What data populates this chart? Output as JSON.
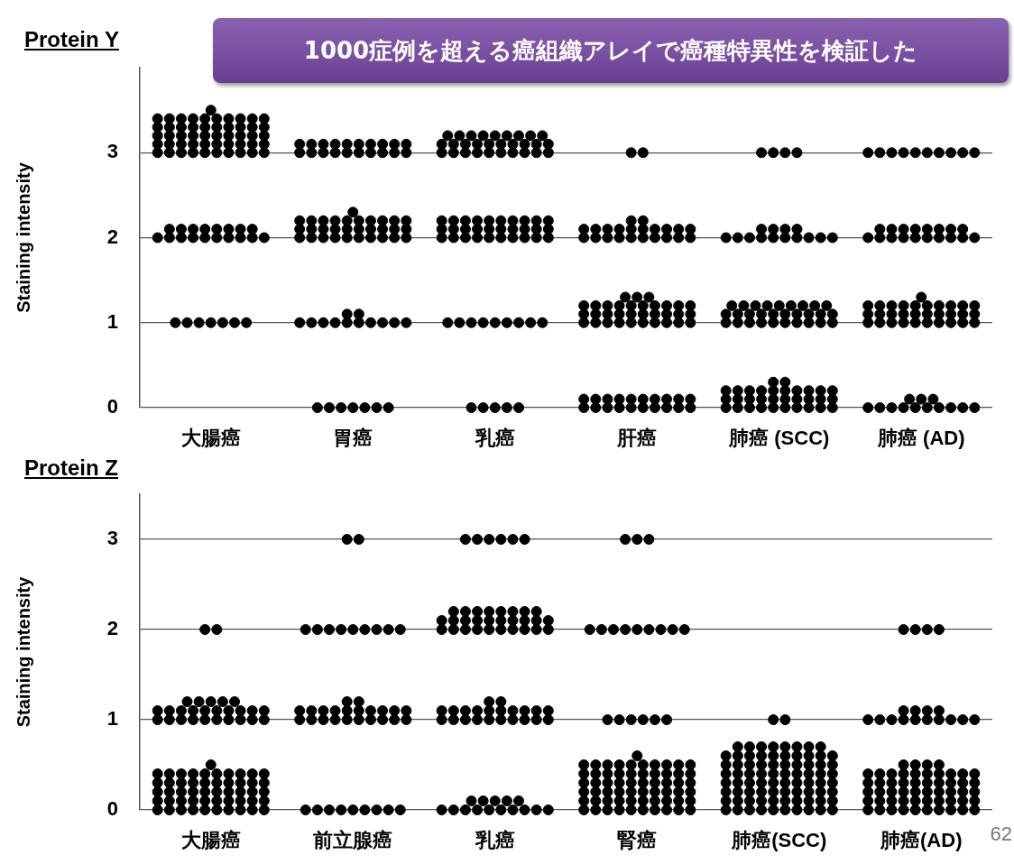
{
  "chart_data": [
    {
      "type": "scatter",
      "title": "Protein Y",
      "ylabel": "Staining intensity",
      "annotations": [
        "1000症例を超える癌組織アレイで癌種特異性を検証した"
      ],
      "categories": [
        "大腸癌",
        "胃癌",
        "乳癌",
        "肝癌",
        "肺癌 (SCC)",
        "肺癌 (AD)"
      ],
      "ylim": [
        0,
        4
      ],
      "yticks": [
        0,
        1,
        2,
        3
      ],
      "grid": "y",
      "legend": false,
      "marker": "circle",
      "series": [
        {
          "color": "#000000",
          "x": [
            "大腸癌",
            "大腸癌",
            "大腸癌",
            "大腸癌",
            "大腸癌",
            "大腸癌",
            "大腸癌",
            "大腸癌",
            "大腸癌",
            "大腸癌",
            "大腸癌",
            "大腸癌",
            "大腸癌",
            "大腸癌",
            "大腸癌",
            "大腸癌",
            "大腸癌",
            "大腸癌",
            "大腸癌",
            "大腸癌",
            "大腸癌",
            "大腸癌",
            "大腸癌",
            "大腸癌",
            "大腸癌",
            "大腸癌",
            "大腸癌",
            "大腸癌",
            "大腸癌",
            "大腸癌",
            "大腸癌",
            "大腸癌",
            "大腸癌",
            "大腸癌",
            "大腸癌",
            "大腸癌",
            "大腸癌",
            "大腸癌",
            "大腸癌",
            "大腸癌",
            "大腸癌",
            "大腸癌",
            "大腸癌",
            "大腸癌",
            "大腸癌",
            "大腸癌",
            "大腸癌",
            "大腸癌",
            "大腸癌",
            "大腸癌",
            "大腸癌",
            "大腸癌",
            "大腸癌",
            "大腸癌",
            "大腸癌",
            "大腸癌",
            "大腸癌",
            "大腸癌",
            "大腸癌",
            "大腸癌",
            "大腸癌",
            "大腸癌",
            "大腸癌",
            "大腸癌",
            "大腸癌",
            "大腸癌",
            "大腸癌",
            "大腸癌",
            "大腸癌",
            "大腸癌",
            "大腸癌",
            "大腸癌",
            "大腸癌",
            "大腸癌",
            "大腸癌",
            "大腸癌"
          ],
          "values": [
            3,
            3,
            3,
            3,
            3,
            3,
            3,
            3,
            3,
            3,
            3.1,
            3.1,
            3.1,
            3.1,
            3.1,
            3.1,
            3.1,
            3.1,
            3.1,
            3.1,
            3.2,
            3.2,
            3.2,
            3.2,
            3.2,
            3.2,
            3.2,
            3.2,
            3.2,
            3.2,
            3.3,
            3.3,
            3.3,
            3.3,
            3.3,
            3.3,
            3.3,
            3.3,
            3.3,
            3.3,
            3.4,
            3.4,
            3.4,
            3.4,
            3.4,
            3.4,
            3.4,
            3.4,
            3.4,
            3.4,
            3.5,
            2,
            2,
            2,
            2,
            2,
            2,
            2,
            2,
            2,
            2,
            2.1,
            2.1,
            2.1,
            2.1,
            2.1,
            2.1,
            2.1,
            2.1,
            1,
            1,
            1,
            1,
            1,
            1,
            1
          ]
        },
        {
          "color": "#000000",
          "x": [
            "胃癌",
            "胃癌",
            "胃癌",
            "胃癌",
            "胃癌",
            "胃癌",
            "胃癌",
            "胃癌",
            "胃癌",
            "胃癌",
            "胃癌",
            "胃癌",
            "胃癌",
            "胃癌",
            "胃癌",
            "胃癌",
            "胃癌",
            "胃癌",
            "胃癌",
            "胃癌",
            "胃癌",
            "胃癌",
            "胃癌",
            "胃癌",
            "胃癌",
            "胃癌",
            "胃癌",
            "胃癌",
            "胃癌",
            "胃癌",
            "胃癌",
            "胃癌",
            "胃癌",
            "胃癌",
            "胃癌",
            "胃癌",
            "胃癌",
            "胃癌",
            "胃癌",
            "胃癌",
            "胃癌",
            "胃癌",
            "胃癌",
            "胃癌",
            "胃癌",
            "胃癌",
            "胃癌",
            "胃癌",
            "胃癌",
            "胃癌",
            "胃癌",
            "胃癌",
            "胃癌",
            "胃癌",
            "胃癌",
            "胃癌",
            "胃癌",
            "胃癌",
            "胃癌",
            "胃癌",
            "胃癌",
            "胃癌",
            "胃癌",
            "胃癌",
            "胃癌",
            "胃癌",
            "胃癌",
            "胃癌",
            "胃癌",
            "胃癌"
          ],
          "values": [
            3,
            3,
            3,
            3,
            3,
            3,
            3,
            3,
            3,
            3,
            3.1,
            3.1,
            3.1,
            3.1,
            3.1,
            3.1,
            3.1,
            3.1,
            3.1,
            3.1,
            2,
            2,
            2,
            2,
            2,
            2,
            2,
            2,
            2,
            2,
            2.1,
            2.1,
            2.1,
            2.1,
            2.1,
            2.1,
            2.1,
            2.1,
            2.1,
            2.1,
            2.2,
            2.2,
            2.2,
            2.2,
            2.2,
            2.2,
            2.2,
            2.2,
            2.2,
            2.2,
            2.3,
            1,
            1,
            1,
            1,
            1,
            1,
            1,
            1,
            1,
            1,
            1.1,
            1.1,
            0,
            0,
            0,
            0,
            0,
            0,
            0
          ]
        },
        {
          "color": "#000000",
          "x": [
            "乳癌",
            "乳癌",
            "乳癌",
            "乳癌",
            "乳癌",
            "乳癌",
            "乳癌",
            "乳癌",
            "乳癌",
            "乳癌",
            "乳癌",
            "乳癌",
            "乳癌",
            "乳癌",
            "乳癌",
            "乳癌",
            "乳癌",
            "乳癌",
            "乳癌",
            "乳癌",
            "乳癌",
            "乳癌",
            "乳癌",
            "乳癌",
            "乳癌",
            "乳癌",
            "乳癌",
            "乳癌",
            "乳癌",
            "乳癌",
            "乳癌",
            "乳癌",
            "乳癌",
            "乳癌",
            "乳癌",
            "乳癌",
            "乳癌",
            "乳癌",
            "乳癌",
            "乳癌",
            "乳癌",
            "乳癌",
            "乳癌",
            "乳癌",
            "乳癌",
            "乳癌",
            "乳癌",
            "乳癌",
            "乳癌",
            "乳癌",
            "乳癌",
            "乳癌",
            "乳癌",
            "乳癌",
            "乳癌",
            "乳癌",
            "乳癌",
            "乳癌",
            "乳癌",
            "乳癌",
            "乳癌",
            "乳癌",
            "乳癌",
            "乳癌",
            "乳癌",
            "乳癌",
            "乳癌",
            "乳癌",
            "乳癌",
            "乳癌",
            "乳癌",
            "乳癌",
            "乳癌"
          ],
          "values": [
            3,
            3,
            3,
            3,
            3,
            3,
            3,
            3,
            3,
            3,
            3.1,
            3.1,
            3.1,
            3.1,
            3.1,
            3.1,
            3.1,
            3.1,
            3.1,
            3.1,
            3.2,
            3.2,
            3.2,
            3.2,
            3.2,
            3.2,
            3.2,
            3.2,
            3.2,
            2,
            2,
            2,
            2,
            2,
            2,
            2,
            2,
            2,
            2,
            2.1,
            2.1,
            2.1,
            2.1,
            2.1,
            2.1,
            2.1,
            2.1,
            2.1,
            2.1,
            2.2,
            2.2,
            2.2,
            2.2,
            2.2,
            2.2,
            2.2,
            2.2,
            2.2,
            2.2,
            1,
            1,
            1,
            1,
            1,
            1,
            1,
            1,
            1,
            0,
            0,
            0,
            0,
            0
          ]
        },
        {
          "color": "#000000",
          "x": [
            "肝癌",
            "肝癌",
            "肝癌",
            "肝癌",
            "肝癌",
            "肝癌",
            "肝癌",
            "肝癌",
            "肝癌",
            "肝癌",
            "肝癌",
            "肝癌",
            "肝癌",
            "肝癌",
            "肝癌",
            "肝癌",
            "肝癌",
            "肝癌",
            "肝癌",
            "肝癌",
            "肝癌",
            "肝癌",
            "肝癌",
            "肝癌",
            "肝癌",
            "肝癌",
            "肝癌",
            "肝癌",
            "肝癌",
            "肝癌",
            "肝癌",
            "肝癌",
            "肝癌",
            "肝癌",
            "肝癌",
            "肝癌",
            "肝癌",
            "肝癌",
            "肝癌",
            "肝癌",
            "肝癌",
            "肝癌",
            "肝癌",
            "肝癌",
            "肝癌",
            "肝癌",
            "肝癌",
            "肝癌",
            "肝癌",
            "肝癌",
            "肝癌",
            "肝癌",
            "肝癌",
            "肝癌",
            "肝癌",
            "肝癌",
            "肝癌",
            "肝癌",
            "肝癌",
            "肝癌",
            "肝癌",
            "肝癌",
            "肝癌",
            "肝癌",
            "肝癌",
            "肝癌",
            "肝癌",
            "肝癌",
            "肝癌",
            "肝癌",
            "肝癌",
            "肝癌",
            "肝癌",
            "肝癌",
            "肝癌",
            "肝癌",
            "肝癌"
          ],
          "values": [
            3,
            3,
            2,
            2,
            2,
            2,
            2,
            2,
            2,
            2,
            2,
            2,
            2.1,
            2.1,
            2.1,
            2.1,
            2.1,
            2.1,
            2.1,
            2.1,
            2.1,
            2.1,
            2.2,
            2.2,
            1,
            1,
            1,
            1,
            1,
            1,
            1,
            1,
            1,
            1,
            1.1,
            1.1,
            1.1,
            1.1,
            1.1,
            1.1,
            1.1,
            1.1,
            1.1,
            1.1,
            1.2,
            1.2,
            1.2,
            1.2,
            1.2,
            1.2,
            1.2,
            1.2,
            1.2,
            1.2,
            1.3,
            1.3,
            1.3,
            0,
            0,
            0,
            0,
            0,
            0,
            0,
            0,
            0,
            0,
            0.1,
            0.1,
            0.1,
            0.1,
            0.1,
            0.1,
            0.1,
            0.1,
            0.1,
            0.1
          ]
        },
        {
          "color": "#000000",
          "x": [
            "肺癌 (SCC)",
            "肺癌 (SCC)",
            "肺癌 (SCC)",
            "肺癌 (SCC)",
            "肺癌 (SCC)",
            "肺癌 (SCC)",
            "肺癌 (SCC)",
            "肺癌 (SCC)",
            "肺癌 (SCC)",
            "肺癌 (SCC)",
            "肺癌 (SCC)",
            "肺癌 (SCC)",
            "肺癌 (SCC)",
            "肺癌 (SCC)",
            "肺癌 (SCC)",
            "肺癌 (SCC)",
            "肺癌 (SCC)",
            "肺癌 (SCC)",
            "肺癌 (SCC)",
            "肺癌 (SCC)",
            "肺癌 (SCC)",
            "肺癌 (SCC)",
            "肺癌 (SCC)",
            "肺癌 (SCC)",
            "肺癌 (SCC)",
            "肺癌 (SCC)",
            "肺癌 (SCC)",
            "肺癌 (SCC)",
            "肺癌 (SCC)",
            "肺癌 (SCC)",
            "肺癌 (SCC)",
            "肺癌 (SCC)",
            "肺癌 (SCC)",
            "肺癌 (SCC)",
            "肺癌 (SCC)",
            "肺癌 (SCC)",
            "肺癌 (SCC)",
            "肺癌 (SCC)",
            "肺癌 (SCC)",
            "肺癌 (SCC)",
            "肺癌 (SCC)",
            "肺癌 (SCC)",
            "肺癌 (SCC)",
            "肺癌 (SCC)",
            "肺癌 (SCC)",
            "肺癌 (SCC)",
            "肺癌 (SCC)",
            "肺癌 (SCC)",
            "肺癌 (SCC)",
            "肺癌 (SCC)",
            "肺癌 (SCC)",
            "肺癌 (SCC)",
            "肺癌 (SCC)",
            "肺癌 (SCC)",
            "肺癌 (SCC)",
            "肺癌 (SCC)",
            "肺癌 (SCC)",
            "肺癌 (SCC)",
            "肺癌 (SCC)",
            "肺癌 (SCC)",
            "肺癌 (SCC)",
            "肺癌 (SCC)",
            "肺癌 (SCC)",
            "肺癌 (SCC)",
            "肺癌 (SCC)",
            "肺癌 (SCC)",
            "肺癌 (SCC)",
            "肺癌 (SCC)",
            "肺癌 (SCC)",
            "肺癌 (SCC)",
            "肺癌 (SCC)",
            "肺癌 (SCC)",
            "肺癌 (SCC)",
            "肺癌 (SCC)",
            "肺癌 (SCC)",
            "肺癌 (SCC)",
            "肺癌 (SCC)",
            "肺癌 (SCC)",
            "肺癌 (SCC)"
          ],
          "values": [
            3,
            3,
            3,
            3,
            2,
            2,
            2,
            2,
            2,
            2,
            2,
            2,
            2,
            2,
            2.1,
            2.1,
            2.1,
            2.1,
            1,
            1,
            1,
            1,
            1,
            1,
            1,
            1,
            1,
            1,
            1.1,
            1.1,
            1.1,
            1.1,
            1.1,
            1.1,
            1.1,
            1.1,
            1.1,
            1.1,
            1.2,
            1.2,
            1.2,
            1.2,
            1.2,
            1.2,
            1.2,
            1.2,
            1.2,
            0,
            0,
            0,
            0,
            0,
            0,
            0,
            0,
            0,
            0,
            0.1,
            0.1,
            0.1,
            0.1,
            0.1,
            0.1,
            0.1,
            0.1,
            0.1,
            0.1,
            0.2,
            0.2,
            0.2,
            0.2,
            0.2,
            0.2,
            0.2,
            0.2,
            0.2,
            0.2,
            0.3,
            0.3
          ]
        },
        {
          "color": "#000000",
          "x": [
            "肺癌 (AD)",
            "肺癌 (AD)",
            "肺癌 (AD)",
            "肺癌 (AD)",
            "肺癌 (AD)",
            "肺癌 (AD)",
            "肺癌 (AD)",
            "肺癌 (AD)",
            "肺癌 (AD)",
            "肺癌 (AD)",
            "肺癌 (AD)",
            "肺癌 (AD)",
            "肺癌 (AD)",
            "肺癌 (AD)",
            "肺癌 (AD)",
            "肺癌 (AD)",
            "肺癌 (AD)",
            "肺癌 (AD)",
            "肺癌 (AD)",
            "肺癌 (AD)",
            "肺癌 (AD)",
            "肺癌 (AD)",
            "肺癌 (AD)",
            "肺癌 (AD)",
            "肺癌 (AD)",
            "肺癌 (AD)",
            "肺癌 (AD)",
            "肺癌 (AD)",
            "肺癌 (AD)",
            "肺癌 (AD)",
            "肺癌 (AD)",
            "肺癌 (AD)",
            "肺癌 (AD)",
            "肺癌 (AD)",
            "肺癌 (AD)",
            "肺癌 (AD)",
            "肺癌 (AD)",
            "肺癌 (AD)",
            "肺癌 (AD)",
            "肺癌 (AD)",
            "肺癌 (AD)",
            "肺癌 (AD)",
            "肺癌 (AD)",
            "肺癌 (AD)",
            "肺癌 (AD)",
            "肺癌 (AD)",
            "肺癌 (AD)",
            "肺癌 (AD)",
            "肺癌 (AD)",
            "肺癌 (AD)",
            "肺癌 (AD)",
            "肺癌 (AD)",
            "肺癌 (AD)",
            "肺癌 (AD)",
            "肺癌 (AD)",
            "肺癌 (AD)",
            "肺癌 (AD)",
            "肺癌 (AD)",
            "肺癌 (AD)",
            "肺癌 (AD)",
            "肺癌 (AD)",
            "肺癌 (AD)",
            "肺癌 (AD)",
            "肺癌 (AD)",
            "肺癌 (AD)",
            "肺癌 (AD)",
            "肺癌 (AD)",
            "肺癌 (AD)",
            "肺癌 (AD)",
            "肺癌 (AD)",
            "肺癌 (AD)",
            "肺癌 (AD)"
          ],
          "values": [
            3,
            3,
            3,
            3,
            3,
            3,
            3,
            3,
            3,
            3,
            2,
            2,
            2,
            2,
            2,
            2,
            2,
            2,
            2,
            2,
            2.1,
            2.1,
            2.1,
            2.1,
            2.1,
            2.1,
            2.1,
            2.1,
            1,
            1,
            1,
            1,
            1,
            1,
            1,
            1,
            1,
            1,
            1.1,
            1.1,
            1.1,
            1.1,
            1.1,
            1.1,
            1.1,
            1.1,
            1.1,
            1.1,
            1.2,
            1.2,
            1.2,
            1.2,
            1.2,
            1.2,
            1.2,
            1.2,
            1.2,
            1.2,
            1.3,
            0,
            0,
            0,
            0,
            0,
            0,
            0,
            0,
            0,
            0,
            0.1,
            0.1,
            0.1
          ]
        }
      ]
    },
    {
      "type": "scatter",
      "title": "Protein Z",
      "ylabel": "Staining intensity",
      "annotations": [
        "62"
      ],
      "categories": [
        "大腸癌",
        "前立腺癌",
        "乳癌",
        "腎癌",
        "肺癌(SCC)",
        "肺癌(AD)"
      ],
      "ylim": [
        0,
        3.5
      ],
      "yticks": [
        0,
        1,
        2,
        3
      ],
      "grid": "y",
      "legend": false,
      "marker": "circle",
      "series": [
        {
          "color": "#000000",
          "x": [
            "大腸癌",
            "大腸癌",
            "大腸癌",
            "大腸癌",
            "大腸癌",
            "大腸癌",
            "大腸癌",
            "大腸癌",
            "大腸癌",
            "大腸癌",
            "大腸癌",
            "大腸癌",
            "大腸癌",
            "大腸癌",
            "大腸癌",
            "大腸癌",
            "大腸癌",
            "大腸癌",
            "大腸癌",
            "大腸癌",
            "大腸癌",
            "大腸癌",
            "大腸癌",
            "大腸癌",
            "大腸癌",
            "大腸癌",
            "大腸癌",
            "大腸癌",
            "大腸癌",
            "大腸癌",
            "大腸癌",
            "大腸癌",
            "大腸癌",
            "大腸癌",
            "大腸癌",
            "大腸癌",
            "大腸癌",
            "大腸癌",
            "大腸癌",
            "大腸癌",
            "大腸癌",
            "大腸癌",
            "大腸癌",
            "大腸癌",
            "大腸癌",
            "大腸癌",
            "大腸癌",
            "大腸癌",
            "大腸癌",
            "大腸癌",
            "大腸癌",
            "大腸癌",
            "大腸癌",
            "大腸癌",
            "大腸癌",
            "大腸癌",
            "大腸癌",
            "大腸癌",
            "大腸癌",
            "大腸癌",
            "大腸癌",
            "大腸癌",
            "大腸癌",
            "大腸癌",
            "大腸癌",
            "大腸癌",
            "大腸癌",
            "大腸癌",
            "大腸癌",
            "大腸癌",
            "大腸癌",
            "大腸癌",
            "大腸癌",
            "大腸癌",
            "大腸癌",
            "大腸癌",
            "大腸癌",
            "大腸癌"
          ],
          "values": [
            2,
            2,
            1,
            1,
            1,
            1,
            1,
            1,
            1,
            1,
            1,
            1,
            1.1,
            1.1,
            1.1,
            1.1,
            1.1,
            1.1,
            1.1,
            1.1,
            1.1,
            1.1,
            1.2,
            1.2,
            1.2,
            1.2,
            1.2,
            0,
            0,
            0,
            0,
            0,
            0,
            0,
            0,
            0,
            0,
            0.1,
            0.1,
            0.1,
            0.1,
            0.1,
            0.1,
            0.1,
            0.1,
            0.1,
            0.1,
            0.2,
            0.2,
            0.2,
            0.2,
            0.2,
            0.2,
            0.2,
            0.2,
            0.2,
            0.2,
            0.3,
            0.3,
            0.3,
            0.3,
            0.3,
            0.3,
            0.3,
            0.3,
            0.3,
            0.3,
            0.4,
            0.4,
            0.4,
            0.4,
            0.4,
            0.4,
            0.4,
            0.4,
            0.4,
            0.4,
            0.5
          ]
        },
        {
          "color": "#000000",
          "x": [
            "前立腺癌",
            "前立腺癌",
            "前立腺癌",
            "前立腺癌",
            "前立腺癌",
            "前立腺癌",
            "前立腺癌",
            "前立腺癌",
            "前立腺癌",
            "前立腺癌",
            "前立腺癌",
            "前立腺癌",
            "前立腺癌",
            "前立腺癌",
            "前立腺癌",
            "前立腺癌",
            "前立腺癌",
            "前立腺癌",
            "前立腺癌",
            "前立腺癌",
            "前立腺癌",
            "前立腺癌",
            "前立腺癌",
            "前立腺癌",
            "前立腺癌",
            "前立腺癌",
            "前立腺癌",
            "前立腺癌",
            "前立腺癌",
            "前立腺癌",
            "前立腺癌",
            "前立腺癌",
            "前立腺癌",
            "前立腺癌",
            "前立腺癌",
            "前立腺癌",
            "前立腺癌",
            "前立腺癌",
            "前立腺癌",
            "前立腺癌",
            "前立腺癌",
            "前立腺癌"
          ],
          "values": [
            3,
            3,
            2,
            2,
            2,
            2,
            2,
            2,
            2,
            2,
            2,
            1,
            1,
            1,
            1,
            1,
            1,
            1,
            1,
            1,
            1,
            1.1,
            1.1,
            1.1,
            1.1,
            1.1,
            1.1,
            1.1,
            1.1,
            1.1,
            1.1,
            1.2,
            1.2,
            0,
            0,
            0,
            0,
            0,
            0,
            0,
            0,
            0
          ]
        },
        {
          "color": "#000000",
          "x": [
            "乳癌",
            "乳癌",
            "乳癌",
            "乳癌",
            "乳癌",
            "乳癌",
            "乳癌",
            "乳癌",
            "乳癌",
            "乳癌",
            "乳癌",
            "乳癌",
            "乳癌",
            "乳癌",
            "乳癌",
            "乳癌",
            "乳癌",
            "乳癌",
            "乳癌",
            "乳癌",
            "乳癌",
            "乳癌",
            "乳癌",
            "乳癌",
            "乳癌",
            "乳癌",
            "乳癌",
            "乳癌",
            "乳癌",
            "乳癌",
            "乳癌",
            "乳癌",
            "乳癌",
            "乳癌",
            "乳癌",
            "乳癌",
            "乳癌",
            "乳癌",
            "乳癌",
            "乳癌",
            "乳癌",
            "乳癌",
            "乳癌",
            "乳癌",
            "乳癌",
            "乳癌",
            "乳癌",
            "乳癌",
            "乳癌",
            "乳癌",
            "乳癌",
            "乳癌",
            "乳癌",
            "乳癌",
            "乳癌",
            "乳癌",
            "乳癌",
            "乳癌",
            "乳癌",
            "乳癌",
            "乳癌",
            "乳癌",
            "乳癌",
            "乳癌",
            "乳癌",
            "乳癌",
            "乳癌",
            "乳癌",
            "乳癌",
            "乳癌",
            "乳癌"
          ],
          "values": [
            3,
            3,
            3,
            3,
            3,
            3,
            2,
            2,
            2,
            2,
            2,
            2,
            2,
            2,
            2,
            2,
            2.1,
            2.1,
            2.1,
            2.1,
            2.1,
            2.1,
            2.1,
            2.1,
            2.1,
            2.1,
            2.2,
            2.2,
            2.2,
            2.2,
            2.2,
            2.2,
            2.2,
            2.2,
            1,
            1,
            1,
            1,
            1,
            1,
            1,
            1,
            1,
            1,
            1.1,
            1.1,
            1.1,
            1.1,
            1.1,
            1.1,
            1.1,
            1.1,
            1.1,
            1.1,
            1.2,
            1.2,
            0,
            0,
            0,
            0,
            0,
            0,
            0,
            0,
            0,
            0,
            0.1,
            0.1,
            0.1,
            0.1,
            0.1
          ]
        },
        {
          "color": "#000000",
          "x": [
            "腎癌",
            "腎癌",
            "腎癌",
            "腎癌",
            "腎癌",
            "腎癌",
            "腎癌",
            "腎癌",
            "腎癌",
            "腎癌",
            "腎癌",
            "腎癌",
            "腎癌",
            "腎癌",
            "腎癌",
            "腎癌",
            "腎癌",
            "腎癌",
            "腎癌",
            "腎癌",
            "腎癌",
            "腎癌",
            "腎癌",
            "腎癌",
            "腎癌",
            "腎癌",
            "腎癌",
            "腎癌",
            "腎癌",
            "腎癌",
            "腎癌",
            "腎癌",
            "腎癌",
            "腎癌",
            "腎癌",
            "腎癌",
            "腎癌",
            "腎癌",
            "腎癌",
            "腎癌",
            "腎癌",
            "腎癌",
            "腎癌",
            "腎癌",
            "腎癌",
            "腎癌",
            "腎癌",
            "腎癌",
            "腎癌",
            "腎癌",
            "腎癌",
            "腎癌",
            "腎癌",
            "腎癌",
            "腎癌",
            "腎癌",
            "腎癌",
            "腎癌",
            "腎癌",
            "腎癌",
            "腎癌",
            "腎癌",
            "腎癌",
            "腎癌",
            "腎癌",
            "腎癌",
            "腎癌",
            "腎癌",
            "腎癌",
            "腎癌",
            "腎癌",
            "腎癌",
            "腎癌",
            "腎癌",
            "腎癌",
            "腎癌",
            "腎癌",
            "腎癌",
            "腎癌"
          ],
          "values": [
            3,
            3,
            3,
            2,
            2,
            2,
            2,
            2,
            2,
            2,
            2,
            2,
            1,
            1,
            1,
            1,
            1,
            1,
            0,
            0,
            0,
            0,
            0,
            0,
            0,
            0,
            0,
            0,
            0.1,
            0.1,
            0.1,
            0.1,
            0.1,
            0.1,
            0.1,
            0.1,
            0.1,
            0.1,
            0.2,
            0.2,
            0.2,
            0.2,
            0.2,
            0.2,
            0.2,
            0.2,
            0.2,
            0.2,
            0.3,
            0.3,
            0.3,
            0.3,
            0.3,
            0.3,
            0.3,
            0.3,
            0.3,
            0.3,
            0.4,
            0.4,
            0.4,
            0.4,
            0.4,
            0.4,
            0.4,
            0.4,
            0.4,
            0.4,
            0.5,
            0.5,
            0.5,
            0.5,
            0.5,
            0.5,
            0.5,
            0.5,
            0.5,
            0.5,
            0.6
          ]
        },
        {
          "color": "#000000",
          "x": [
            "肺癌(SCC)",
            "肺癌(SCC)",
            "肺癌(SCC)",
            "肺癌(SCC)",
            "肺癌(SCC)",
            "肺癌(SCC)",
            "肺癌(SCC)",
            "肺癌(SCC)",
            "肺癌(SCC)",
            "肺癌(SCC)",
            "肺癌(SCC)",
            "肺癌(SCC)",
            "肺癌(SCC)",
            "肺癌(SCC)",
            "肺癌(SCC)",
            "肺癌(SCC)",
            "肺癌(SCC)",
            "肺癌(SCC)",
            "肺癌(SCC)",
            "肺癌(SCC)",
            "肺癌(SCC)",
            "肺癌(SCC)",
            "肺癌(SCC)",
            "肺癌(SCC)",
            "肺癌(SCC)",
            "肺癌(SCC)",
            "肺癌(SCC)",
            "肺癌(SCC)",
            "肺癌(SCC)",
            "肺癌(SCC)",
            "肺癌(SCC)",
            "肺癌(SCC)",
            "肺癌(SCC)",
            "肺癌(SCC)",
            "肺癌(SCC)",
            "肺癌(SCC)",
            "肺癌(SCC)",
            "肺癌(SCC)",
            "肺癌(SCC)",
            "肺癌(SCC)",
            "肺癌(SCC)",
            "肺癌(SCC)",
            "肺癌(SCC)",
            "肺癌(SCC)",
            "肺癌(SCC)",
            "肺癌(SCC)",
            "肺癌(SCC)",
            "肺癌(SCC)",
            "肺癌(SCC)",
            "肺癌(SCC)",
            "肺癌(SCC)",
            "肺癌(SCC)",
            "肺癌(SCC)",
            "肺癌(SCC)",
            "肺癌(SCC)",
            "肺癌(SCC)",
            "肺癌(SCC)",
            "肺癌(SCC)",
            "肺癌(SCC)",
            "肺癌(SCC)",
            "肺癌(SCC)",
            "肺癌(SCC)",
            "肺癌(SCC)",
            "肺癌(SCC)",
            "肺癌(SCC)",
            "肺癌(SCC)",
            "肺癌(SCC)",
            "肺癌(SCC)",
            "肺癌(SCC)",
            "肺癌(SCC)",
            "肺癌(SCC)",
            "肺癌(SCC)",
            "肺癌(SCC)",
            "肺癌(SCC)",
            "肺癌(SCC)",
            "肺癌(SCC)",
            "肺癌(SCC)",
            "肺癌(SCC)",
            "肺癌(SCC)",
            "肺癌(SCC)"
          ],
          "values": [
            1,
            1,
            0,
            0,
            0,
            0,
            0,
            0,
            0,
            0,
            0,
            0,
            0.1,
            0.1,
            0.1,
            0.1,
            0.1,
            0.1,
            0.1,
            0.1,
            0.1,
            0.1,
            0.2,
            0.2,
            0.2,
            0.2,
            0.2,
            0.2,
            0.2,
            0.2,
            0.2,
            0.2,
            0.3,
            0.3,
            0.3,
            0.3,
            0.3,
            0.3,
            0.3,
            0.3,
            0.3,
            0.3,
            0.4,
            0.4,
            0.4,
            0.4,
            0.4,
            0.4,
            0.4,
            0.4,
            0.4,
            0.4,
            0.5,
            0.5,
            0.5,
            0.5,
            0.5,
            0.5,
            0.5,
            0.5,
            0.5,
            0.5,
            0.6,
            0.6,
            0.6,
            0.6,
            0.6,
            0.6,
            0.6,
            0.6,
            0.6,
            0.6,
            0.7,
            0.7,
            0.7,
            0.7,
            0.7,
            0.7,
            0.7,
            0.7
          ]
        },
        {
          "color": "#000000",
          "x": [
            "肺癌(AD)",
            "肺癌(AD)",
            "肺癌(AD)",
            "肺癌(AD)",
            "肺癌(AD)",
            "肺癌(AD)",
            "肺癌(AD)",
            "肺癌(AD)",
            "肺癌(AD)",
            "肺癌(AD)",
            "肺癌(AD)",
            "肺癌(AD)",
            "肺癌(AD)",
            "肺癌(AD)",
            "肺癌(AD)",
            "肺癌(AD)",
            "肺癌(AD)",
            "肺癌(AD)",
            "肺癌(AD)",
            "肺癌(AD)",
            "肺癌(AD)",
            "肺癌(AD)",
            "肺癌(AD)",
            "肺癌(AD)",
            "肺癌(AD)",
            "肺癌(AD)",
            "肺癌(AD)",
            "肺癌(AD)",
            "肺癌(AD)",
            "肺癌(AD)",
            "肺癌(AD)",
            "肺癌(AD)",
            "肺癌(AD)",
            "肺癌(AD)",
            "肺癌(AD)",
            "肺癌(AD)",
            "肺癌(AD)",
            "肺癌(AD)",
            "肺癌(AD)",
            "肺癌(AD)",
            "肺癌(AD)",
            "肺癌(AD)",
            "肺癌(AD)",
            "肺癌(AD)",
            "肺癌(AD)",
            "肺癌(AD)",
            "肺癌(AD)",
            "肺癌(AD)",
            "肺癌(AD)",
            "肺癌(AD)",
            "肺癌(AD)",
            "肺癌(AD)",
            "肺癌(AD)",
            "肺癌(AD)",
            "肺癌(AD)",
            "肺癌(AD)",
            "肺癌(AD)",
            "肺癌(AD)",
            "肺癌(AD)",
            "肺癌(AD)",
            "肺癌(AD)",
            "肺癌(AD)",
            "肺癌(AD)",
            "肺癌(AD)",
            "肺癌(AD)",
            "肺癌(AD)",
            "肺癌(AD)",
            "肺癌(AD)",
            "肺癌(AD)",
            "肺癌(AD)",
            "肺癌(AD)",
            "肺癌(AD)"
          ],
          "values": [
            2,
            2,
            2,
            2,
            1,
            1,
            1,
            1,
            1,
            1,
            1,
            1,
            1,
            1,
            1.1,
            1.1,
            1.1,
            1.1,
            0,
            0,
            0,
            0,
            0,
            0,
            0,
            0,
            0,
            0,
            0.1,
            0.1,
            0.1,
            0.1,
            0.1,
            0.1,
            0.1,
            0.1,
            0.1,
            0.1,
            0.2,
            0.2,
            0.2,
            0.2,
            0.2,
            0.2,
            0.2,
            0.2,
            0.2,
            0.2,
            0.3,
            0.3,
            0.3,
            0.3,
            0.3,
            0.3,
            0.3,
            0.3,
            0.3,
            0.3,
            0.4,
            0.4,
            0.4,
            0.4,
            0.4,
            0.4,
            0.4,
            0.4,
            0.4,
            0.4,
            0.5,
            0.5,
            0.5,
            0.5
          ]
        }
      ]
    }
  ]
}
